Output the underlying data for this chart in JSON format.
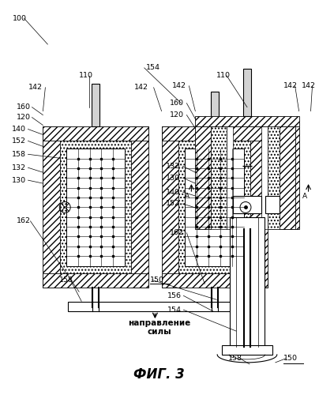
{
  "fig_label": "ФИГ. 3",
  "bg_color": "#ffffff",
  "figsize": [
    4.04,
    5.0
  ],
  "dpi": 100,
  "xlim": [
    0,
    404
  ],
  "ylim": [
    0,
    500
  ],
  "label_fs": 7.0,
  "fig_label_fs": 12
}
